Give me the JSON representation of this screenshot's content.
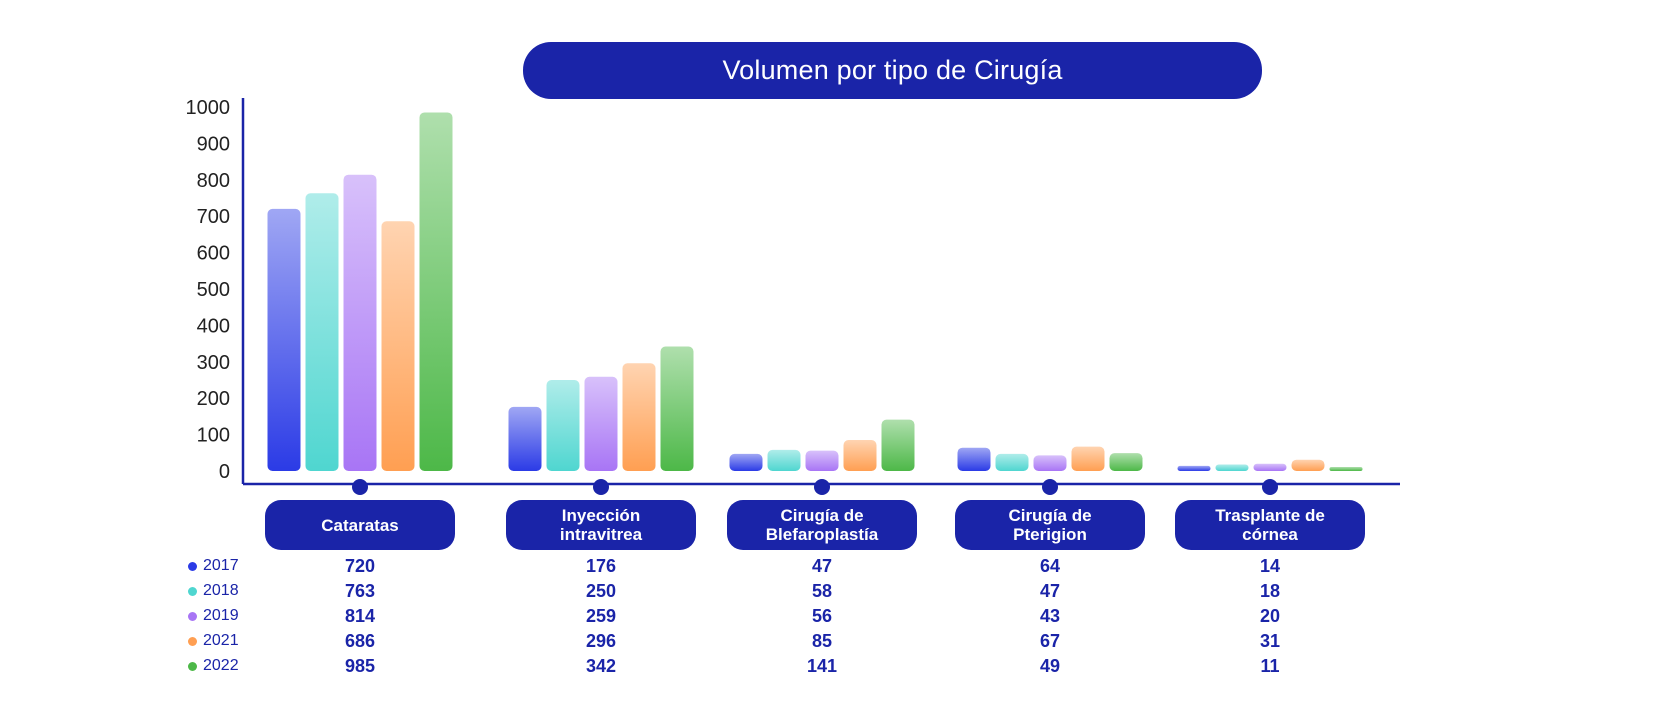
{
  "chart_data": {
    "type": "bar",
    "title": "Volumen por tipo de Cirugía",
    "categories": [
      "Cataratas",
      "Inyección intravítrea",
      "Cirugía de Blefaroplastía",
      "Cirugía de Pterigion",
      "Trasplante de córnea"
    ],
    "category_lines": [
      [
        "Cataratas"
      ],
      [
        "Inyección",
        "intravitrea"
      ],
      [
        "Cirugía de",
        "Blefaroplastía"
      ],
      [
        "Cirugía de",
        "Pterigion"
      ],
      [
        "Trasplante de",
        "córnea"
      ]
    ],
    "series": [
      {
        "name": "2017",
        "values": [
          720,
          176,
          47,
          64,
          14
        ],
        "color": "#2b3be6"
      },
      {
        "name": "2018",
        "values": [
          763,
          250,
          58,
          47,
          18
        ],
        "color": "#4fd6d0"
      },
      {
        "name": "2019",
        "values": [
          814,
          259,
          56,
          43,
          20
        ],
        "color": "#a875f5"
      },
      {
        "name": "2021",
        "values": [
          686,
          296,
          85,
          67,
          31
        ],
        "color": "#ff9f52"
      },
      {
        "name": "2022",
        "values": [
          985,
          342,
          141,
          49,
          11
        ],
        "color": "#4db848"
      }
    ],
    "yticks": [
      0,
      100,
      200,
      300,
      400,
      500,
      600,
      700,
      800,
      900,
      1000
    ],
    "ylim": [
      0,
      1000
    ],
    "xlabel": "",
    "ylabel": "",
    "grid": false,
    "legend_position": "bottom-left table",
    "accent_color": "#1a24a8"
  }
}
